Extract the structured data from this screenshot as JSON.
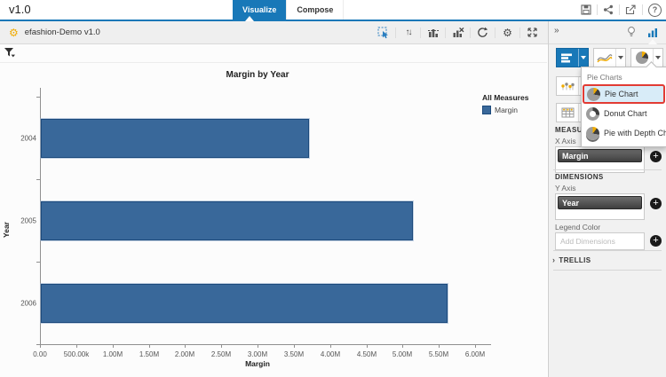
{
  "window": {
    "title": "v1.0"
  },
  "header": {
    "tabs": [
      {
        "label": "Visualize",
        "active": true
      },
      {
        "label": "Compose",
        "active": false
      }
    ],
    "action_icons": [
      "save-icon",
      "share-icon",
      "export-icon",
      "help-icon"
    ],
    "help_glyph": "?"
  },
  "toolbar": {
    "dataset_label": "efashion-Demo v1.0",
    "icons": [
      "select-icon",
      "sort-icon",
      "rank-chart-icon",
      "clear-chart-icon",
      "refresh-icon",
      "settings-icon",
      "maximize-icon"
    ],
    "sort_glyph": "↑↓",
    "gear_glyph": "⚙"
  },
  "canvas": {
    "filter_icon": "filter-icon"
  },
  "chart_data": {
    "type": "bar",
    "orientation": "horizontal",
    "title": "Margin by Year",
    "xlabel": "Margin",
    "ylabel": "Year",
    "categories": [
      "2004",
      "2005",
      "2006"
    ],
    "series": [
      {
        "name": "Margin",
        "color": "#39689a",
        "values": [
          3700000,
          5130000,
          5610000
        ]
      }
    ],
    "xlim": [
      0,
      6000000
    ],
    "x_ticks": [
      {
        "v": 0,
        "label": "0.00"
      },
      {
        "v": 500000,
        "label": "500.00k"
      },
      {
        "v": 1000000,
        "label": "1.00M"
      },
      {
        "v": 1500000,
        "label": "1.50M"
      },
      {
        "v": 2000000,
        "label": "2.00M"
      },
      {
        "v": 2500000,
        "label": "2.50M"
      },
      {
        "v": 3000000,
        "label": "3.00M"
      },
      {
        "v": 3500000,
        "label": "3.50M"
      },
      {
        "v": 4000000,
        "label": "4.00M"
      },
      {
        "v": 4500000,
        "label": "4.50M"
      },
      {
        "v": 5000000,
        "label": "5.00M"
      },
      {
        "v": 5500000,
        "label": "5.50M"
      },
      {
        "v": 6000000,
        "label": "6.00M"
      }
    ],
    "legend": {
      "title": "All Measures",
      "position": "right"
    },
    "grid": false
  },
  "panel": {
    "collapse_glyph": "»",
    "top_icons": [
      "lightbulb-icon",
      "chart-suggestion-icon"
    ],
    "chart_buttons": [
      {
        "icon": "hbar-chart-icon",
        "selected": true
      },
      {
        "icon": "line-chart-icon",
        "selected": false
      },
      {
        "icon": "pie-chart-icon",
        "selected": false
      },
      {
        "icon": "scatter-chart-icon",
        "selected": false
      },
      {
        "icon": "crosstab-icon",
        "selected": false
      }
    ],
    "menu": {
      "header": "Pie Charts",
      "items": [
        {
          "label": "Pie Chart",
          "icon": "pie",
          "highlighted": true
        },
        {
          "label": "Donut Chart",
          "icon": "donut",
          "highlighted": false
        },
        {
          "label": "Pie with Depth Chart",
          "icon": "pie-depth",
          "highlighted": false
        }
      ]
    },
    "sections": {
      "measures": {
        "header": "MEASURES",
        "x_axis_label": "X Axis",
        "x_axis_value": "Margin"
      },
      "dimensions": {
        "header": "DIMENSIONS",
        "y_axis_label": "Y Axis",
        "y_axis_value": "Year",
        "legend_color_label": "Legend Color",
        "legend_color_placeholder": "Add Dimensions"
      },
      "trellis": {
        "header": "TRELLIS",
        "chevron": "›"
      }
    }
  },
  "colors": {
    "accent": "#1878b8",
    "bar_fill": "#39689a",
    "bar_border": "#1c4a7c",
    "orange": "#f0ab00",
    "annotation_red": "#e23b34",
    "menu_highlight": "#d8ecf8"
  }
}
